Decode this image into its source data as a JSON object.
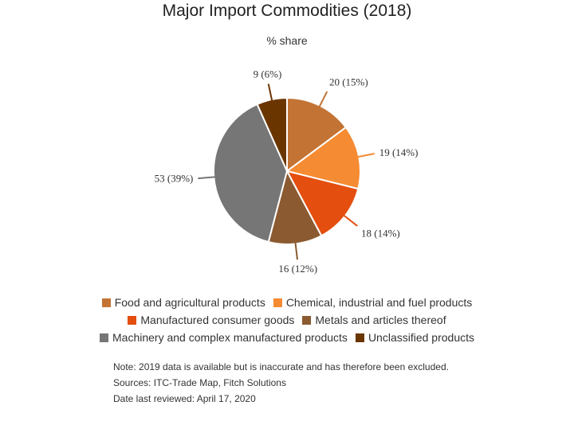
{
  "chart_data": {
    "type": "pie",
    "title": "Major Import Commodities (2018)",
    "subtitle": "% share",
    "slices": [
      {
        "name": "Food and agricultural products",
        "value": 20,
        "percent": 15,
        "label": "20 (15%)",
        "color": "#c37334"
      },
      {
        "name": "Chemical, industrial and fuel products",
        "value": 19,
        "percent": 14,
        "label": "19 (14%)",
        "color": "#f58b32"
      },
      {
        "name": "Manufactured consumer goods",
        "value": 18,
        "percent": 14,
        "label": "18 (14%)",
        "color": "#e44e0f"
      },
      {
        "name": "Metals and articles thereof",
        "value": 16,
        "percent": 12,
        "label": "16 (12%)",
        "color": "#8b5a30"
      },
      {
        "name": "Machinery and complex manufactured products",
        "value": 53,
        "percent": 39,
        "label": "53 (39%)",
        "color": "#767676"
      },
      {
        "name": "Unclassified products",
        "value": 9,
        "percent": 6,
        "label": "9 (6%)",
        "color": "#6b3500"
      }
    ],
    "legend_position": "bottom"
  },
  "notes": {
    "line1": "Note: 2019 data is available but is inaccurate and has therefore been excluded.",
    "line2": "Sources: ITC-Trade Map, Fitch Solutions",
    "line3": "Date last reviewed: April 17, 2020"
  }
}
